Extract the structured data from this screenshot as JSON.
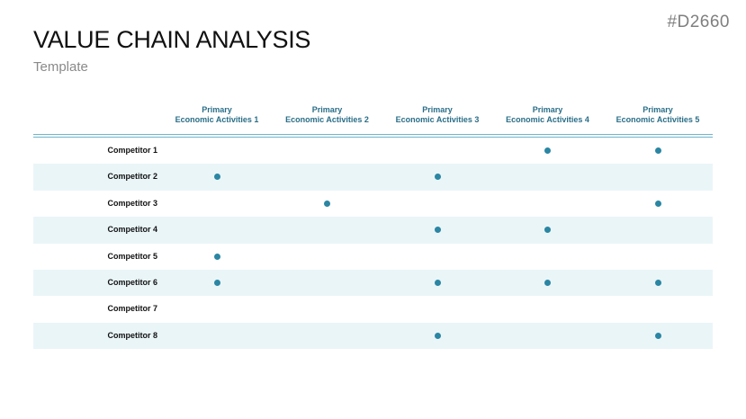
{
  "slide": {
    "id": "#D2660",
    "title": "VALUE CHAIN ANALYSIS",
    "subtitle": "Template"
  },
  "colors": {
    "accent": "#2a86a3",
    "header_text": "#2a6e87",
    "row_shade": "#eaf5f8",
    "rule": "#6fb5cb"
  },
  "matrix": {
    "columns": [
      {
        "line1": "Primary",
        "line2": "Economic Activities 1"
      },
      {
        "line1": "Primary",
        "line2": "Economic Activities 2"
      },
      {
        "line1": "Primary",
        "line2": "Economic Activities 3"
      },
      {
        "line1": "Primary",
        "line2": "Economic Activities 4"
      },
      {
        "line1": "Primary",
        "line2": "Economic Activities 5"
      }
    ],
    "rows": [
      {
        "label": "Competitor 1",
        "marks": [
          false,
          false,
          false,
          true,
          true
        ]
      },
      {
        "label": "Competitor 2",
        "marks": [
          true,
          false,
          true,
          false,
          false
        ]
      },
      {
        "label": "Competitor 3",
        "marks": [
          false,
          true,
          false,
          false,
          true
        ]
      },
      {
        "label": "Competitor 4",
        "marks": [
          false,
          false,
          true,
          true,
          false
        ]
      },
      {
        "label": "Competitor 5",
        "marks": [
          true,
          false,
          false,
          false,
          false
        ]
      },
      {
        "label": "Competitor 6",
        "marks": [
          true,
          false,
          true,
          true,
          true
        ]
      },
      {
        "label": "Competitor 7",
        "marks": [
          false,
          false,
          false,
          false,
          false
        ]
      },
      {
        "label": "Competitor 8",
        "marks": [
          false,
          false,
          true,
          false,
          true
        ]
      }
    ],
    "marker_icon": "dot-marker-icon"
  }
}
